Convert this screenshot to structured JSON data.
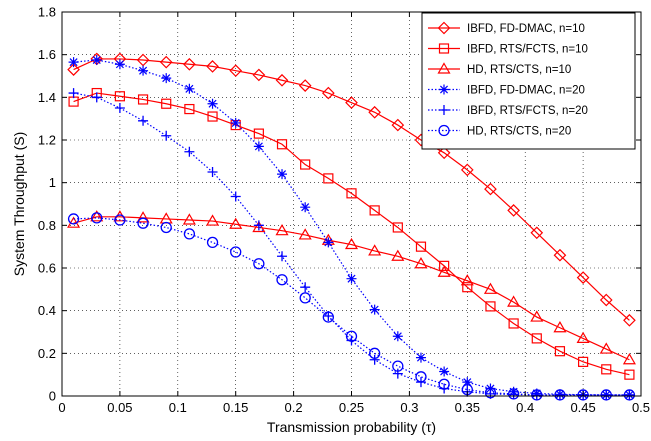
{
  "chart_data": {
    "type": "line",
    "title": "",
    "xlabel": "Transmission probability (τ)",
    "ylabel": "System Throughput (S)",
    "xlim": [
      0,
      0.5
    ],
    "ylim": [
      0,
      1.8
    ],
    "xticks": [
      0,
      0.05,
      0.1,
      0.15,
      0.2,
      0.25,
      0.3,
      0.35,
      0.4,
      0.45,
      0.5
    ],
    "xtick_labels": [
      "0",
      "0.05",
      "0.1",
      "0.15",
      "0.2",
      "0.25",
      "0.3",
      "0.35",
      "0.4",
      "0.45",
      "0.5"
    ],
    "yticks": [
      0,
      0.2,
      0.4,
      0.6,
      0.8,
      1,
      1.2,
      1.4,
      1.6,
      1.8
    ],
    "ytick_labels": [
      "0",
      "0.2",
      "0.4",
      "0.6",
      "0.8",
      "1",
      "1.2",
      "1.4",
      "1.6",
      "1.8"
    ],
    "grid": true,
    "legend_position": "top-right",
    "x": [
      0.01,
      0.03,
      0.05,
      0.07,
      0.09,
      0.11,
      0.13,
      0.15,
      0.17,
      0.19,
      0.21,
      0.23,
      0.25,
      0.27,
      0.29,
      0.31,
      0.33,
      0.35,
      0.37,
      0.39,
      0.41,
      0.43,
      0.45,
      0.47,
      0.49
    ],
    "series": [
      {
        "name": "IBFD, FD-DMAC, n=10",
        "color": "#ff0000",
        "line": "solid",
        "marker": "diamond",
        "values": [
          1.53,
          1.58,
          1.58,
          1.575,
          1.565,
          1.555,
          1.545,
          1.525,
          1.505,
          1.48,
          1.455,
          1.42,
          1.375,
          1.33,
          1.27,
          1.2,
          1.14,
          1.06,
          0.97,
          0.87,
          0.765,
          0.66,
          0.555,
          0.45,
          0.355
        ]
      },
      {
        "name": "IBFD, RTS/FCTS, n=10",
        "color": "#ff0000",
        "line": "solid",
        "marker": "square",
        "values": [
          1.38,
          1.42,
          1.405,
          1.39,
          1.37,
          1.345,
          1.31,
          1.27,
          1.23,
          1.18,
          1.085,
          1.02,
          0.95,
          0.87,
          0.79,
          0.7,
          0.61,
          0.51,
          0.42,
          0.34,
          0.27,
          0.21,
          0.16,
          0.125,
          0.1
        ]
      },
      {
        "name": "HD, RTS/CTS, n=10",
        "color": "#ff0000",
        "line": "solid",
        "marker": "triangle",
        "values": [
          0.81,
          0.84,
          0.84,
          0.835,
          0.83,
          0.825,
          0.82,
          0.805,
          0.79,
          0.775,
          0.755,
          0.73,
          0.71,
          0.68,
          0.655,
          0.62,
          0.58,
          0.54,
          0.5,
          0.44,
          0.37,
          0.32,
          0.27,
          0.22,
          0.17
        ]
      },
      {
        "name": "IBFD, FD-DMAC, n=20",
        "color": "#0000ff",
        "line": "dotted",
        "marker": "star",
        "values": [
          1.565,
          1.575,
          1.555,
          1.525,
          1.49,
          1.44,
          1.37,
          1.28,
          1.17,
          1.04,
          0.885,
          0.72,
          0.55,
          0.405,
          0.28,
          0.18,
          0.115,
          0.065,
          0.035,
          0.02,
          0.012,
          0.008,
          0.006,
          0.005,
          0.005
        ]
      },
      {
        "name": "IBFD, RTS/FCTS, n=20",
        "color": "#0000ff",
        "line": "dotted",
        "marker": "plus",
        "values": [
          1.42,
          1.4,
          1.35,
          1.29,
          1.22,
          1.145,
          1.05,
          0.935,
          0.8,
          0.655,
          0.51,
          0.375,
          0.26,
          0.17,
          0.105,
          0.065,
          0.035,
          0.02,
          0.01,
          0.007,
          0.005,
          0.005,
          0.005,
          0.005,
          0.005
        ]
      },
      {
        "name": "HD, RTS/CTS, n=20",
        "color": "#0000ff",
        "line": "dotted",
        "marker": "circle",
        "values": [
          0.83,
          0.835,
          0.825,
          0.81,
          0.79,
          0.76,
          0.72,
          0.675,
          0.62,
          0.545,
          0.46,
          0.37,
          0.28,
          0.2,
          0.14,
          0.09,
          0.055,
          0.03,
          0.015,
          0.01,
          0.005,
          0.005,
          0.005,
          0.005,
          0.005
        ]
      }
    ]
  }
}
